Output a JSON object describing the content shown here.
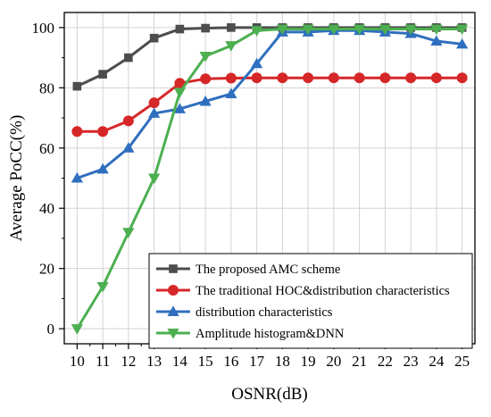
{
  "chart_data": {
    "type": "line",
    "title": "",
    "xlabel": "OSNR(dB)",
    "ylabel": "Average PoCC(%)",
    "xlim": [
      9.5,
      25.5
    ],
    "ylim": [
      -5,
      105
    ],
    "x": [
      10,
      11,
      12,
      13,
      14,
      15,
      16,
      17,
      18,
      19,
      20,
      21,
      22,
      23,
      24,
      25
    ],
    "yticks": [
      0,
      20,
      40,
      60,
      80,
      100
    ],
    "grid": true,
    "legend_position": "bottom-right",
    "series": [
      {
        "name": "The proposed AMC scheme",
        "color": "#4d4d4d",
        "marker": "square",
        "values": [
          80.5,
          84.5,
          90,
          96.5,
          99.5,
          99.8,
          100,
          100,
          100,
          100,
          100,
          100,
          100,
          100,
          100,
          100
        ]
      },
      {
        "name": "The traditional HOC&distribution characteristics",
        "color": "#d62728",
        "marker": "circle",
        "values": [
          65.5,
          65.5,
          69,
          75,
          81.5,
          83,
          83.2,
          83.3,
          83.3,
          83.3,
          83.3,
          83.3,
          83.3,
          83.3,
          83.3,
          83.3
        ]
      },
      {
        "name": "distribution characteristics",
        "color": "#2f6fbf",
        "marker": "triangle-up",
        "values": [
          50,
          53,
          60,
          71.5,
          73,
          75.5,
          78,
          88,
          98.5,
          98.5,
          99,
          99,
          98.5,
          98,
          95.5,
          94.5
        ]
      },
      {
        "name": "Amplitude histogram&DNN",
        "color": "#4caf50",
        "marker": "triangle-down",
        "values": [
          0,
          14,
          32,
          50,
          78.5,
          90.5,
          94,
          99,
          99.5,
          99.5,
          99.5,
          99.5,
          99.5,
          99.5,
          99.5,
          99.5
        ]
      }
    ]
  }
}
